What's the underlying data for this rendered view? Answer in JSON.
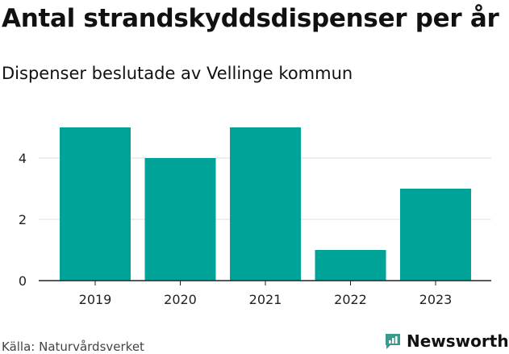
{
  "header": {
    "title": "Antal strandskyddsdispenser per år",
    "subtitle": "Dispenser beslutade av Vellinge kommun"
  },
  "footer": {
    "source": "Källa: Naturvårdsverket",
    "brand": "Newsworthy"
  },
  "colors": {
    "bar": "#00a398",
    "grid": "#dddddd",
    "axis": "#222222",
    "brand": "#3a9a8c"
  },
  "icons": {
    "brand_logo": "newsworthy-logo-icon"
  },
  "chart_data": {
    "type": "bar",
    "title": "Antal strandskyddsdispenser per år",
    "subtitle": "Dispenser beslutade av Vellinge kommun",
    "categories": [
      "2019",
      "2020",
      "2021",
      "2022",
      "2023"
    ],
    "values": [
      5,
      4,
      5,
      1,
      3
    ],
    "ylim": [
      0,
      5
    ],
    "yticks": [
      0,
      2,
      4
    ],
    "xlabel": "",
    "ylabel": "",
    "grid": true,
    "legend": "none"
  }
}
